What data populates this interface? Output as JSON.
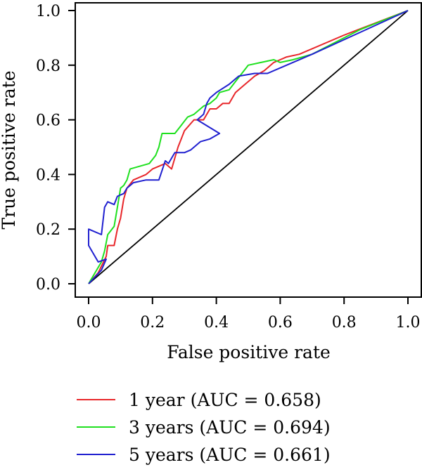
{
  "chart_data": {
    "type": "line",
    "title": "",
    "xlabel": "False positive rate",
    "ylabel": "True positive rate",
    "xlim": [
      0,
      1
    ],
    "ylim": [
      0,
      1
    ],
    "x_ticks": [
      "0.0",
      "0.2",
      "0.4",
      "0.6",
      "0.8",
      "1.0"
    ],
    "y_ticks": [
      "0.0",
      "0.2",
      "0.4",
      "0.6",
      "0.8",
      "1.0"
    ],
    "grid": false,
    "legend_position": "bottom",
    "reference_line": {
      "x": [
        0,
        1
      ],
      "y": [
        0,
        1
      ],
      "color": "#000000"
    },
    "series": [
      {
        "name": "1 year (AUC = 0.658)",
        "color": "#e8262a",
        "points": [
          [
            0,
            0
          ],
          [
            0.03,
            0.04
          ],
          [
            0.055,
            0.1
          ],
          [
            0.06,
            0.14
          ],
          [
            0.08,
            0.14
          ],
          [
            0.09,
            0.2
          ],
          [
            0.1,
            0.24
          ],
          [
            0.11,
            0.31
          ],
          [
            0.12,
            0.35
          ],
          [
            0.14,
            0.38
          ],
          [
            0.18,
            0.4
          ],
          [
            0.2,
            0.42
          ],
          [
            0.22,
            0.43
          ],
          [
            0.24,
            0.44
          ],
          [
            0.26,
            0.42
          ],
          [
            0.28,
            0.5
          ],
          [
            0.3,
            0.56
          ],
          [
            0.33,
            0.6
          ],
          [
            0.36,
            0.6
          ],
          [
            0.38,
            0.64
          ],
          [
            0.4,
            0.64
          ],
          [
            0.42,
            0.66
          ],
          [
            0.44,
            0.66
          ],
          [
            0.46,
            0.7
          ],
          [
            0.48,
            0.72
          ],
          [
            0.5,
            0.74
          ],
          [
            0.52,
            0.76
          ],
          [
            0.55,
            0.78
          ],
          [
            0.58,
            0.81
          ],
          [
            0.6,
            0.82
          ],
          [
            0.62,
            0.83
          ],
          [
            0.66,
            0.84
          ],
          [
            0.8,
            0.91
          ],
          [
            1,
            1
          ]
        ]
      },
      {
        "name": "3 years (AUC = 0.694)",
        "color": "#1fe01f",
        "points": [
          [
            0,
            0
          ],
          [
            0.04,
            0.08
          ],
          [
            0.05,
            0.12
          ],
          [
            0.06,
            0.18
          ],
          [
            0.08,
            0.21
          ],
          [
            0.09,
            0.28
          ],
          [
            0.1,
            0.35
          ],
          [
            0.11,
            0.36
          ],
          [
            0.12,
            0.38
          ],
          [
            0.13,
            0.42
          ],
          [
            0.16,
            0.43
          ],
          [
            0.19,
            0.44
          ],
          [
            0.21,
            0.47
          ],
          [
            0.22,
            0.5
          ],
          [
            0.23,
            0.55
          ],
          [
            0.27,
            0.55
          ],
          [
            0.29,
            0.58
          ],
          [
            0.31,
            0.61
          ],
          [
            0.33,
            0.62
          ],
          [
            0.36,
            0.65
          ],
          [
            0.38,
            0.66
          ],
          [
            0.4,
            0.68
          ],
          [
            0.41,
            0.7
          ],
          [
            0.44,
            0.71
          ],
          [
            0.46,
            0.74
          ],
          [
            0.48,
            0.77
          ],
          [
            0.5,
            0.8
          ],
          [
            0.54,
            0.81
          ],
          [
            0.58,
            0.82
          ],
          [
            0.6,
            0.81
          ],
          [
            0.64,
            0.82
          ],
          [
            0.7,
            0.84
          ],
          [
            0.85,
            0.93
          ],
          [
            1,
            1
          ]
        ]
      },
      {
        "name": "5 years (AUC = 0.661)",
        "color": "#2020d0",
        "points": [
          [
            0,
            0
          ],
          [
            0.04,
            0.05
          ],
          [
            0.055,
            0.09
          ],
          [
            0.03,
            0.08
          ],
          [
            0,
            0.14
          ],
          [
            0,
            0.2
          ],
          [
            0.04,
            0.18
          ],
          [
            0.05,
            0.28
          ],
          [
            0.06,
            0.3
          ],
          [
            0.08,
            0.29
          ],
          [
            0.09,
            0.32
          ],
          [
            0.11,
            0.33
          ],
          [
            0.12,
            0.35
          ],
          [
            0.14,
            0.37
          ],
          [
            0.18,
            0.38
          ],
          [
            0.22,
            0.38
          ],
          [
            0.24,
            0.45
          ],
          [
            0.25,
            0.44
          ],
          [
            0.27,
            0.48
          ],
          [
            0.3,
            0.48
          ],
          [
            0.32,
            0.49
          ],
          [
            0.35,
            0.52
          ],
          [
            0.38,
            0.53
          ],
          [
            0.41,
            0.55
          ],
          [
            0.34,
            0.6
          ],
          [
            0.36,
            0.62
          ],
          [
            0.37,
            0.66
          ],
          [
            0.38,
            0.68
          ],
          [
            0.4,
            0.7
          ],
          [
            0.44,
            0.73
          ],
          [
            0.47,
            0.76
          ],
          [
            0.52,
            0.77
          ],
          [
            0.56,
            0.77
          ],
          [
            0.6,
            0.79
          ],
          [
            0.7,
            0.84
          ],
          [
            0.85,
            0.92
          ],
          [
            1,
            1
          ]
        ]
      }
    ]
  }
}
